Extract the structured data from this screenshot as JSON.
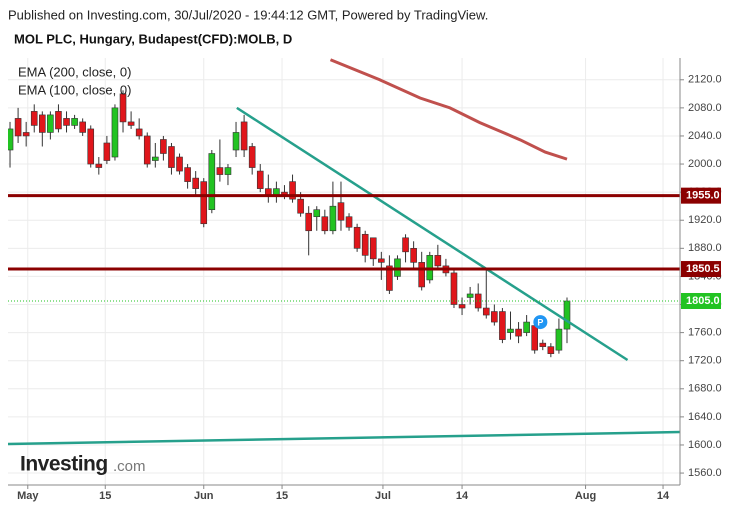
{
  "header": "Published on Investing.com, 30/Jul/2020 - 19:44:12 GMT, Powered by TradingView.",
  "chart_data": {
    "type": "candlestick",
    "title": "MOL PLC, Hungary, Budapest(CFD):MOLB, D",
    "categories": [
      null,
      null,
      null,
      null,
      null,
      null,
      null,
      null,
      null,
      null,
      null,
      null,
      null,
      null,
      null,
      null,
      null,
      null,
      null,
      null,
      null,
      null,
      null,
      null,
      null,
      null,
      null,
      null,
      null,
      null,
      null,
      null,
      null,
      null,
      null,
      null,
      null,
      null,
      null,
      null,
      null,
      null,
      null,
      null,
      null,
      null,
      null,
      null,
      null,
      null,
      null,
      null,
      null,
      null,
      null,
      null,
      null,
      null,
      null,
      null,
      null,
      null,
      null,
      null,
      null,
      null,
      null,
      null,
      null,
      null
    ],
    "open": [
      2020,
      2065,
      2045,
      2075,
      2070,
      2045,
      2075,
      2065,
      2055,
      2060,
      2050,
      2000,
      2030,
      2010,
      2100,
      2060,
      2050,
      2040,
      2005,
      2035,
      2025,
      2010,
      1995,
      1980,
      1975,
      1935,
      1995,
      1985,
      2020,
      2060,
      2025,
      1990,
      1965,
      1955,
      1960,
      1975,
      1950,
      1930,
      1925,
      1925,
      1905,
      1945,
      1925,
      1910,
      1900,
      1895,
      1865,
      1855,
      1840,
      1895,
      1880,
      1860,
      1835,
      1870,
      1855,
      1845,
      1800,
      1810,
      1815,
      1795,
      1790,
      1790,
      1760,
      1765,
      1760,
      1770,
      1745,
      1740,
      1735,
      1765
    ],
    "high": [
      2060,
      2080,
      2060,
      2085,
      2075,
      2075,
      2085,
      2075,
      2070,
      2065,
      2055,
      2010,
      2040,
      2085,
      2105,
      2075,
      2065,
      2045,
      2030,
      2040,
      2030,
      2015,
      2000,
      1990,
      1980,
      2020,
      2035,
      2000,
      2060,
      2070,
      2030,
      2000,
      1985,
      1975,
      1970,
      1985,
      1960,
      1940,
      1940,
      1935,
      1975,
      1975,
      1930,
      1915,
      1905,
      1895,
      1875,
      1870,
      1870,
      1900,
      1890,
      1875,
      1875,
      1885,
      1865,
      1850,
      1810,
      1825,
      1830,
      1850,
      1800,
      1795,
      1790,
      1775,
      1785,
      1780,
      1750,
      1745,
      1780,
      1810
    ],
    "low": [
      1995,
      2030,
      2025,
      2045,
      2025,
      2035,
      2045,
      2045,
      2050,
      2040,
      1995,
      1985,
      2000,
      2005,
      2045,
      2050,
      2035,
      1995,
      1995,
      2005,
      1985,
      1985,
      1965,
      1955,
      1910,
      1930,
      1975,
      1970,
      2010,
      2010,
      1985,
      1960,
      1945,
      1945,
      1950,
      1945,
      1925,
      1870,
      1905,
      1900,
      1900,
      1905,
      1905,
      1875,
      1860,
      1855,
      1835,
      1815,
      1835,
      1860,
      1850,
      1820,
      1830,
      1850,
      1840,
      1795,
      1785,
      1800,
      1790,
      1780,
      1770,
      1745,
      1750,
      1745,
      1755,
      1730,
      1735,
      1725,
      1730,
      1745
    ],
    "close": [
      2050,
      2040,
      2040,
      2055,
      2045,
      2070,
      2050,
      2055,
      2065,
      2045,
      2000,
      1995,
      2005,
      2080,
      2060,
      2055,
      2040,
      2000,
      2010,
      2015,
      1995,
      1990,
      1975,
      1965,
      1915,
      2015,
      1985,
      1995,
      2045,
      2020,
      1995,
      1965,
      1955,
      1965,
      1955,
      1950,
      1930,
      1905,
      1935,
      1905,
      1940,
      1920,
      1910,
      1880,
      1870,
      1865,
      1860,
      1820,
      1865,
      1875,
      1860,
      1825,
      1870,
      1855,
      1845,
      1800,
      1795,
      1815,
      1795,
      1785,
      1775,
      1750,
      1765,
      1755,
      1775,
      1735,
      1740,
      1730,
      1765,
      1805
    ],
    "up_color": "#22c322",
    "down_color": "#e0161b",
    "ylim": [
      1543,
      2151
    ],
    "yticks": [
      {
        "value": 1560,
        "label": "1560.0"
      },
      {
        "value": 1600,
        "label": "1600.0"
      },
      {
        "value": 1640,
        "label": "1640.0"
      },
      {
        "value": 1680,
        "label": "1680.0"
      },
      {
        "value": 1720,
        "label": "1720.0"
      },
      {
        "value": 1760,
        "label": "1760.0"
      },
      {
        "value": 1800,
        "label": "1800.0"
      },
      {
        "value": 1840,
        "label": "1840.0"
      },
      {
        "value": 1880,
        "label": "1880.0"
      },
      {
        "value": 1920,
        "label": "1920.0"
      },
      {
        "value": 1960,
        "label": "1960.0"
      },
      {
        "value": 2000,
        "label": "2000.0"
      },
      {
        "value": 2040,
        "label": "2040.0"
      },
      {
        "value": 2080,
        "label": "2080.0"
      },
      {
        "value": 2120,
        "label": "2120.0"
      }
    ],
    "xlim": [
      -0.25,
      83
    ],
    "xticks": [
      {
        "value": 2.2,
        "label": "May"
      },
      {
        "value": 11.8,
        "label": "15"
      },
      {
        "value": 24.0,
        "label": "Jun"
      },
      {
        "value": 33.7,
        "label": "15"
      },
      {
        "value": 46.2,
        "label": "Jul"
      },
      {
        "value": 56.0,
        "label": "14"
      },
      {
        "value": 71.3,
        "label": "Aug"
      },
      {
        "value": 80.9,
        "label": "14"
      }
    ],
    "grid": true,
    "indicators": [
      {
        "name": "EMA (200, close, 0)",
        "color": "#c0504d",
        "x": [
          39.7,
          45.8,
          50.8,
          54.5,
          58.2,
          63.2,
          66.3,
          69.0
        ],
        "values": [
          2148.5,
          2120,
          2094,
          2080,
          2059,
          2034.5,
          2017,
          2007
        ]
      },
      {
        "name": "EMA (100, close, 0)"
      }
    ],
    "levels": [
      {
        "value": 1955,
        "label": "1955.0",
        "color": "#8b0000",
        "style": "solid"
      },
      {
        "value": 1850.5,
        "label": "1850.5",
        "color": "#8b0000",
        "style": "solid"
      },
      {
        "value": 1805,
        "label": "1805.0",
        "color": "#22c322",
        "style": "dotted"
      }
    ],
    "trendlines": [
      {
        "x": [
          28.1,
          76.5
        ],
        "values": [
          2080,
          1721
        ],
        "color": "#26a08c"
      },
      {
        "x": [
          -0.25,
          83
        ],
        "values": [
          1601.3,
          1618.4
        ],
        "color": "#26a08c"
      }
    ],
    "markers": [
      {
        "label": "P",
        "x": 65.7,
        "value": 1775,
        "color": "#2196f3"
      }
    ]
  },
  "logo": {
    "brand": "Investing",
    "suffix": ".com"
  }
}
